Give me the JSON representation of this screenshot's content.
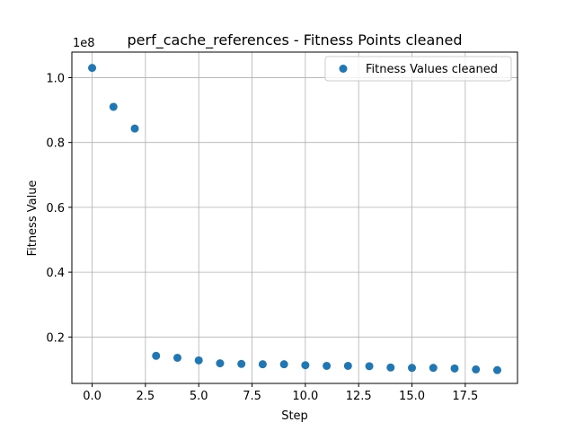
{
  "chart_data": {
    "type": "scatter",
    "title": "perf_cache_references - Fitness Points cleaned",
    "xlabel": "Step",
    "ylabel": "Fitness Value",
    "y_offset_label": "1e8",
    "y_scale_factor": 100000000,
    "xlim": [
      -0.95,
      19.95
    ],
    "ylim": [
      0.0569,
      1.0788
    ],
    "xticks": [
      0.0,
      2.5,
      5.0,
      7.5,
      10.0,
      12.5,
      15.0,
      17.5
    ],
    "xtick_labels": [
      "0.0",
      "2.5",
      "5.0",
      "7.5",
      "10.0",
      "12.5",
      "15.0",
      "17.5"
    ],
    "yticks": [
      0.2,
      0.4,
      0.6,
      0.8,
      1.0
    ],
    "ytick_labels": [
      "0.2",
      "0.4",
      "0.6",
      "0.8",
      "1.0"
    ],
    "grid": true,
    "legend_position": "top-right",
    "series": [
      {
        "name": "Fitness Values cleaned",
        "color": "#1f77b4",
        "x": [
          0,
          1,
          2,
          3,
          4,
          5,
          6,
          7,
          8,
          9,
          10,
          11,
          12,
          13,
          14,
          15,
          16,
          17,
          18,
          19
        ],
        "y": [
          103000000,
          91000000,
          84300000,
          14200000,
          13600000,
          12800000,
          11900000,
          11700000,
          11600000,
          11600000,
          11300000,
          11100000,
          11100000,
          11000000,
          10600000,
          10500000,
          10500000,
          10300000,
          10000000,
          9800000
        ]
      }
    ]
  }
}
